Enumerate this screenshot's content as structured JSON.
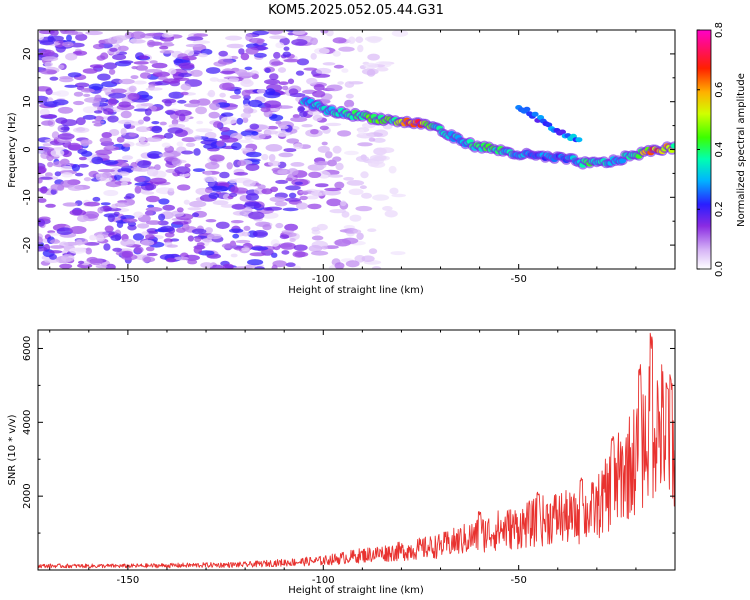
{
  "chart_data": [
    {
      "type": "heatmap",
      "title": "KOM5.2025.052.05.44.G31",
      "xlabel": "Height of straight line (km)",
      "ylabel": "Frequency (Hz)",
      "xlim": [
        -173,
        -10
      ],
      "ylim": [
        -25,
        25
      ],
      "xticks": [
        -150,
        -100,
        -50
      ],
      "yticks": [
        20,
        10,
        0,
        -10,
        -20
      ],
      "colorbar": {
        "label": "Normalized spectral amplitude",
        "range": [
          0,
          0.8
        ],
        "ticks": [
          "0.0",
          "0.2",
          "0.4",
          "0.6",
          "0.8"
        ],
        "colors": [
          "#ffffff",
          "#c8a0f0",
          "#8a2be2",
          "#2a1eff",
          "#00d8ff",
          "#00ff6a",
          "#a8ff00",
          "#ffe000",
          "#ff6a00",
          "#ff0000",
          "#ff00c0"
        ]
      },
      "ridge": {
        "x": [
          -105,
          -98,
          -90,
          -82,
          -76,
          -72,
          -68,
          -62,
          -56,
          -50,
          -44,
          -38,
          -32,
          -26,
          -20,
          -14,
          -10
        ],
        "frequency": [
          10,
          8,
          7,
          6,
          5.5,
          5,
          3,
          1,
          0,
          -1,
          -1.5,
          -2,
          -3,
          -2.5,
          -1,
          0,
          0.5
        ],
        "amplitude": [
          0.35,
          0.4,
          0.45,
          0.5,
          0.75,
          0.45,
          0.35,
          0.4,
          0.45,
          0.35,
          0.3,
          0.3,
          0.45,
          0.35,
          0.45,
          0.8,
          0.5
        ]
      },
      "upper_branch": {
        "x": [
          -50,
          -46,
          -42,
          -38,
          -34
        ],
        "frequency": [
          9,
          7,
          5,
          3,
          2
        ]
      }
    },
    {
      "type": "line",
      "xlabel": "Height of straight line (km)",
      "ylabel": "SNR (10 * v/v)",
      "xlim": [
        -173,
        -10
      ],
      "ylim": [
        0,
        6500
      ],
      "xticks": [
        -150,
        -100,
        -50
      ],
      "yticks": [
        2000,
        4000,
        6000
      ],
      "color": "#e8322f",
      "envelope": {
        "x": [
          -173,
          -150,
          -120,
          -100,
          -90,
          -80,
          -70,
          -60,
          -55,
          -50,
          -45,
          -40,
          -35,
          -30,
          -25,
          -20,
          -15,
          -12,
          -10
        ],
        "y": [
          150,
          150,
          200,
          350,
          550,
          700,
          900,
          1300,
          1500,
          1600,
          1800,
          2000,
          1900,
          2300,
          3300,
          4200,
          5500,
          5000,
          4000
        ]
      },
      "peaks": [
        {
          "x": -60,
          "y": 1600
        },
        {
          "x": -45,
          "y": 2200
        },
        {
          "x": -34,
          "y": 2600
        },
        {
          "x": -26,
          "y": 3700
        },
        {
          "x": -19,
          "y": 5600
        },
        {
          "x": -16,
          "y": 6500
        },
        {
          "x": -12,
          "y": 5100
        },
        {
          "x": -11,
          "y": 5300
        }
      ]
    }
  ]
}
